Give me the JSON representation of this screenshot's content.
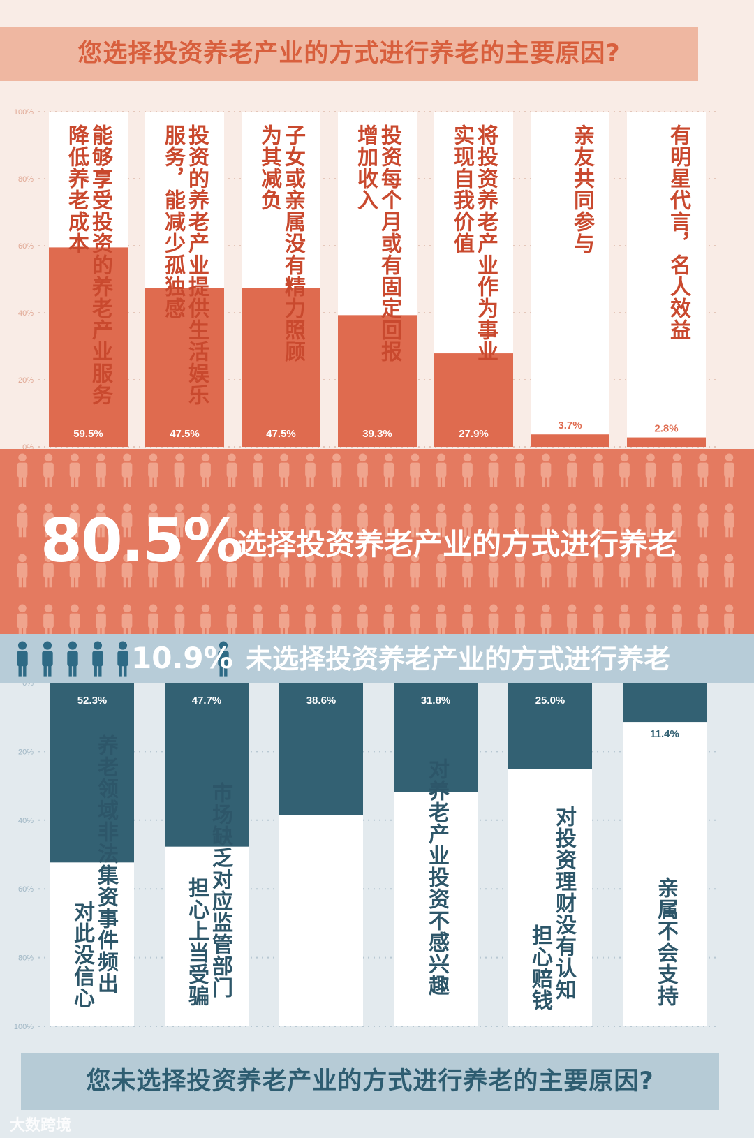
{
  "top": {
    "title": "您选择投资养老产业的方式进行养老的主要原因?",
    "axis_ticks": [
      "100%",
      "80%",
      "60%",
      "40%",
      "20%",
      "0%"
    ]
  },
  "bottom": {
    "title": "您未选择投资养老产业的方式进行养老的主要原因?",
    "axis_ticks": [
      "0%",
      "20%",
      "40%",
      "60%",
      "80%",
      "100%"
    ]
  },
  "summary": {
    "chose_pct": "80.5%",
    "chose_label": "选择投资养老产业的方式进行养老",
    "not_chose_pct": "10.9%",
    "not_chose_label": "未选择投资养老产业的方式进行养老"
  },
  "watermark": "大数跨境",
  "colors": {
    "top_bar": "#df6b4f",
    "top_text": "#c9492e",
    "bottom_bar": "#336173",
    "bottom_text": "#2d5669",
    "white": "#ffffff"
  },
  "chart_data": [
    {
      "type": "bar",
      "title": "您选择投资养老产业的方式进行养老的主要原因?",
      "categories": [
        "能够享受投资的养老产业服务降低养老成本",
        "投资的养老产业提供生活娱乐服务，能减少孤独感",
        "子女或亲属没有精力照顾为其减负",
        "投资每个月或有固定回报增加收入",
        "将投资养老产业作为事业实现自我价值",
        "亲友共同参与",
        "有明星代言，名人效益"
      ],
      "labels_col1": [
        "能够享受投资的养老产业服务",
        "投资的养老产业提供生活娱乐",
        "子女或亲属没有精力照顾",
        "投资每个月或有固定回报",
        "将投资养老产业作为事业",
        "亲友共同参与",
        "有明星代言，名人效益"
      ],
      "labels_col2": [
        "降低养老成本",
        "服务，能减少孤独感",
        "为其减负",
        "增加收入",
        "实现自我价值",
        "",
        ""
      ],
      "values": [
        59.5,
        47.5,
        47.5,
        39.3,
        27.9,
        3.7,
        2.8
      ],
      "value_labels": [
        "59.5%",
        "47.5%",
        "47.5%",
        "39.3%",
        "27.9%",
        "3.7%",
        "2.8%"
      ],
      "ylim": [
        0,
        100
      ],
      "grid": true
    },
    {
      "type": "bar",
      "title": "您未选择投资养老产业的方式进行养老的主要原因?",
      "orientation": "downward",
      "categories": [
        "养老领域非法集资事件频出对此没信心",
        "市场缺乏对应监管部门担心上当受骗",
        "",
        "对养老产业投资不感兴趣",
        "对投资理财没有认知担心赔钱",
        "亲属不会支持"
      ],
      "labels_col1": [
        "养老领域非法集资事件频出",
        "市场缺乏对应监管部门",
        "",
        "对养老产业投资不感兴趣",
        "对投资理财没有认知",
        "亲属不会支持"
      ],
      "labels_col2": [
        "对此没信心",
        "担心上当受骗",
        "",
        "",
        "担心赔钱",
        ""
      ],
      "values": [
        52.3,
        47.7,
        38.6,
        31.8,
        25.0,
        11.4
      ],
      "value_labels": [
        "52.3%",
        "47.7%",
        "38.6%",
        "31.8%",
        "25.0%",
        "11.4%"
      ],
      "ylim": [
        0,
        100
      ],
      "grid": true
    }
  ]
}
